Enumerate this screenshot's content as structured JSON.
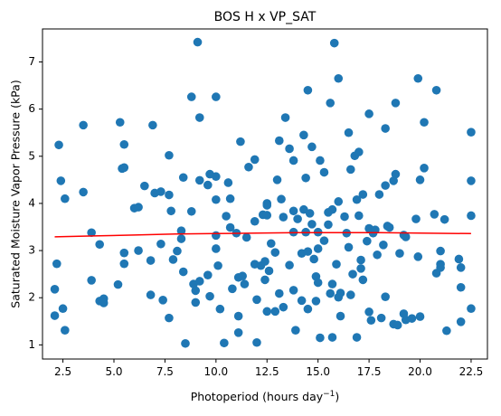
{
  "chart_data": {
    "type": "scatter",
    "title": "BOS H x VP_SAT",
    "xlabel": "Photoperiod (hours day",
    "xlabel_sup": "−1",
    "xlabel_end": ")",
    "ylabel": "Saturated Moisture Vapor Pressure (kPa)",
    "xlim": [
      1.5,
      23.3
    ],
    "ylim": [
      0.7,
      7.7
    ],
    "xticks": [
      2.5,
      5.0,
      7.5,
      10.0,
      12.5,
      15.0,
      17.5,
      20.0,
      22.5
    ],
    "xtick_labels": [
      "2.5",
      "5.0",
      "7.5",
      "10.0",
      "12.5",
      "15.0",
      "17.5",
      "20.0",
      "22.5"
    ],
    "yticks": [
      1,
      2,
      3,
      4,
      5,
      6,
      7
    ],
    "ytick_labels": [
      "1",
      "2",
      "3",
      "4",
      "5",
      "6",
      "7"
    ],
    "grid": false,
    "point_color": "#1f77b4",
    "trend_color": "#ff0000",
    "points": [
      [
        2.1,
        1.62
      ],
      [
        2.1,
        2.18
      ],
      [
        2.2,
        2.72
      ],
      [
        2.3,
        5.24
      ],
      [
        2.4,
        4.48
      ],
      [
        2.5,
        1.77
      ],
      [
        2.6,
        1.31
      ],
      [
        2.6,
        4.1
      ],
      [
        3.5,
        5.66
      ],
      [
        3.5,
        4.24
      ],
      [
        3.9,
        3.38
      ],
      [
        3.9,
        2.37
      ],
      [
        4.3,
        3.13
      ],
      [
        4.3,
        1.93
      ],
      [
        4.5,
        1.98
      ],
      [
        4.5,
        1.89
      ],
      [
        5.2,
        2.28
      ],
      [
        5.3,
        5.72
      ],
      [
        5.4,
        4.74
      ],
      [
        5.5,
        5.25
      ],
      [
        5.5,
        4.76
      ],
      [
        5.5,
        2.95
      ],
      [
        5.5,
        2.72
      ],
      [
        6.0,
        3.9
      ],
      [
        6.2,
        3.92
      ],
      [
        6.2,
        3.0
      ],
      [
        6.5,
        4.37
      ],
      [
        6.8,
        2.79
      ],
      [
        6.8,
        2.06
      ],
      [
        6.9,
        5.66
      ],
      [
        7.0,
        4.22
      ],
      [
        7.3,
        4.25
      ],
      [
        7.3,
        3.14
      ],
      [
        7.4,
        1.95
      ],
      [
        7.7,
        5.02
      ],
      [
        7.7,
        4.18
      ],
      [
        7.7,
        1.57
      ],
      [
        7.8,
        3.84
      ],
      [
        7.9,
        2.81
      ],
      [
        8.1,
        2.99
      ],
      [
        8.3,
        3.42
      ],
      [
        8.3,
        3.25
      ],
      [
        8.4,
        4.55
      ],
      [
        8.4,
        2.55
      ],
      [
        8.5,
        1.03
      ],
      [
        8.8,
        6.26
      ],
      [
        8.8,
        3.83
      ],
      [
        8.9,
        2.29
      ],
      [
        9.0,
        2.15
      ],
      [
        9.0,
        1.9
      ],
      [
        9.1,
        7.42
      ],
      [
        9.2,
        4.49
      ],
      [
        9.2,
        5.82
      ],
      [
        9.2,
        2.35
      ],
      [
        9.6,
        4.39
      ],
      [
        9.6,
        2.48
      ],
      [
        9.7,
        4.62
      ],
      [
        9.7,
        2.03
      ],
      [
        10.0,
        6.26
      ],
      [
        10.0,
        4.57
      ],
      [
        10.0,
        4.08
      ],
      [
        10.0,
        3.32
      ],
      [
        10.0,
        3.04
      ],
      [
        10.1,
        2.68
      ],
      [
        10.2,
        1.76
      ],
      [
        10.4,
        1.04
      ],
      [
        10.5,
        3.73
      ],
      [
        10.6,
        4.44
      ],
      [
        10.7,
        4.1
      ],
      [
        10.7,
        3.49
      ],
      [
        10.8,
        2.19
      ],
      [
        11.0,
        3.37
      ],
      [
        11.1,
        2.43
      ],
      [
        11.1,
        1.61
      ],
      [
        11.1,
        1.26
      ],
      [
        11.2,
        5.31
      ],
      [
        11.3,
        2.46
      ],
      [
        11.4,
        2.29
      ],
      [
        11.5,
        3.28
      ],
      [
        11.6,
        4.77
      ],
      [
        11.9,
        4.93
      ],
      [
        11.9,
        3.62
      ],
      [
        11.9,
        2.71
      ],
      [
        12.0,
        1.96
      ],
      [
        12.0,
        1.05
      ],
      [
        12.2,
        2.68
      ],
      [
        12.3,
        3.76
      ],
      [
        12.4,
        2.77
      ],
      [
        12.4,
        2.38
      ],
      [
        12.5,
        4.0
      ],
      [
        12.5,
        3.96
      ],
      [
        12.5,
        3.75
      ],
      [
        12.5,
        1.71
      ],
      [
        12.6,
        2.57
      ],
      [
        12.7,
        3.15
      ],
      [
        12.9,
        2.96
      ],
      [
        12.9,
        1.71
      ],
      [
        13.0,
        4.5
      ],
      [
        13.1,
        5.33
      ],
      [
        13.1,
        2.09
      ],
      [
        13.2,
        4.09
      ],
      [
        13.3,
        3.71
      ],
      [
        13.3,
        1.8
      ],
      [
        13.4,
        5.82
      ],
      [
        13.6,
        5.16
      ],
      [
        13.6,
        2.69
      ],
      [
        13.8,
        4.91
      ],
      [
        13.8,
        3.84
      ],
      [
        13.8,
        3.39
      ],
      [
        13.8,
        2.16
      ],
      [
        13.9,
        1.31
      ],
      [
        14.0,
        3.67
      ],
      [
        14.2,
        2.94
      ],
      [
        14.2,
        1.94
      ],
      [
        14.3,
        5.45
      ],
      [
        14.3,
        3.87
      ],
      [
        14.4,
        4.54
      ],
      [
        14.4,
        3.39
      ],
      [
        14.5,
        6.4
      ],
      [
        14.5,
        2.98
      ],
      [
        14.5,
        1.76
      ],
      [
        14.6,
        3.79
      ],
      [
        14.7,
        5.2
      ],
      [
        14.7,
        3.56
      ],
      [
        14.8,
        2.82
      ],
      [
        14.9,
        2.45
      ],
      [
        14.9,
        1.93
      ],
      [
        15.0,
        3.39
      ],
      [
        15.0,
        3.04
      ],
      [
        15.0,
        2.32
      ],
      [
        15.1,
        4.91
      ],
      [
        15.1,
        1.15
      ],
      [
        15.3,
        4.66
      ],
      [
        15.3,
        3.21
      ],
      [
        15.5,
        3.81
      ],
      [
        15.5,
        3.55
      ],
      [
        15.6,
        6.13
      ],
      [
        15.6,
        2.09
      ],
      [
        15.7,
        3.87
      ],
      [
        15.7,
        2.29
      ],
      [
        15.7,
        1.16
      ],
      [
        15.8,
        7.4
      ],
      [
        15.9,
        2.71
      ],
      [
        16.0,
        2.01
      ],
      [
        16.0,
        4.04
      ],
      [
        16.0,
        6.65
      ],
      [
        16.1,
        2.1
      ],
      [
        16.1,
        1.61
      ],
      [
        16.3,
        3.72
      ],
      [
        16.4,
        3.37
      ],
      [
        16.5,
        5.5
      ],
      [
        16.5,
        3.07
      ],
      [
        16.6,
        2.06
      ],
      [
        16.6,
        4.72
      ],
      [
        16.7,
        2.5
      ],
      [
        16.8,
        5.01
      ],
      [
        16.9,
        4.08
      ],
      [
        16.9,
        1.16
      ],
      [
        17.0,
        3.74
      ],
      [
        17.0,
        5.09
      ],
      [
        17.1,
        2.8
      ],
      [
        17.1,
        2.62
      ],
      [
        17.2,
        2.38
      ],
      [
        17.2,
        4.19
      ],
      [
        17.4,
        3.2
      ],
      [
        17.5,
        5.9
      ],
      [
        17.5,
        3.47
      ],
      [
        17.5,
        1.7
      ],
      [
        17.6,
        1.52
      ],
      [
        17.7,
        3.37
      ],
      [
        17.8,
        3.44
      ],
      [
        17.9,
        2.91
      ],
      [
        18.0,
        4.19
      ],
      [
        18.1,
        1.57
      ],
      [
        18.2,
        3.12
      ],
      [
        18.3,
        5.59
      ],
      [
        18.3,
        4.38
      ],
      [
        18.3,
        2.02
      ],
      [
        18.4,
        3.52
      ],
      [
        18.5,
        3.49
      ],
      [
        18.7,
        4.48
      ],
      [
        18.7,
        1.44
      ],
      [
        18.8,
        6.13
      ],
      [
        18.8,
        4.62
      ],
      [
        18.9,
        1.42
      ],
      [
        19.0,
        2.94
      ],
      [
        19.2,
        3.33
      ],
      [
        19.2,
        1.66
      ],
      [
        19.3,
        3.29
      ],
      [
        19.3,
        1.53
      ],
      [
        19.6,
        1.56
      ],
      [
        19.8,
        3.67
      ],
      [
        19.9,
        6.65
      ],
      [
        19.9,
        2.87
      ],
      [
        20.0,
        4.5
      ],
      [
        20.0,
        1.6
      ],
      [
        20.2,
        5.72
      ],
      [
        20.2,
        4.75
      ],
      [
        20.7,
        3.77
      ],
      [
        20.8,
        6.4
      ],
      [
        20.8,
        2.52
      ],
      [
        21.0,
        2.99
      ],
      [
        21.0,
        2.71
      ],
      [
        21.0,
        2.64
      ],
      [
        21.2,
        3.66
      ],
      [
        21.3,
        1.3
      ],
      [
        21.9,
        2.82
      ],
      [
        22.0,
        2.64
      ],
      [
        22.0,
        2.22
      ],
      [
        22.0,
        1.49
      ],
      [
        22.5,
        5.51
      ],
      [
        22.5,
        4.48
      ],
      [
        22.5,
        3.74
      ],
      [
        22.5,
        1.77
      ]
    ],
    "trend": {
      "x": [
        2.1,
        4.0,
        6.0,
        8.0,
        10.0,
        12.0,
        14.0,
        16.0,
        18.0,
        20.0,
        22.5
      ],
      "y": [
        3.29,
        3.31,
        3.33,
        3.35,
        3.36,
        3.37,
        3.38,
        3.38,
        3.38,
        3.37,
        3.36
      ]
    }
  }
}
